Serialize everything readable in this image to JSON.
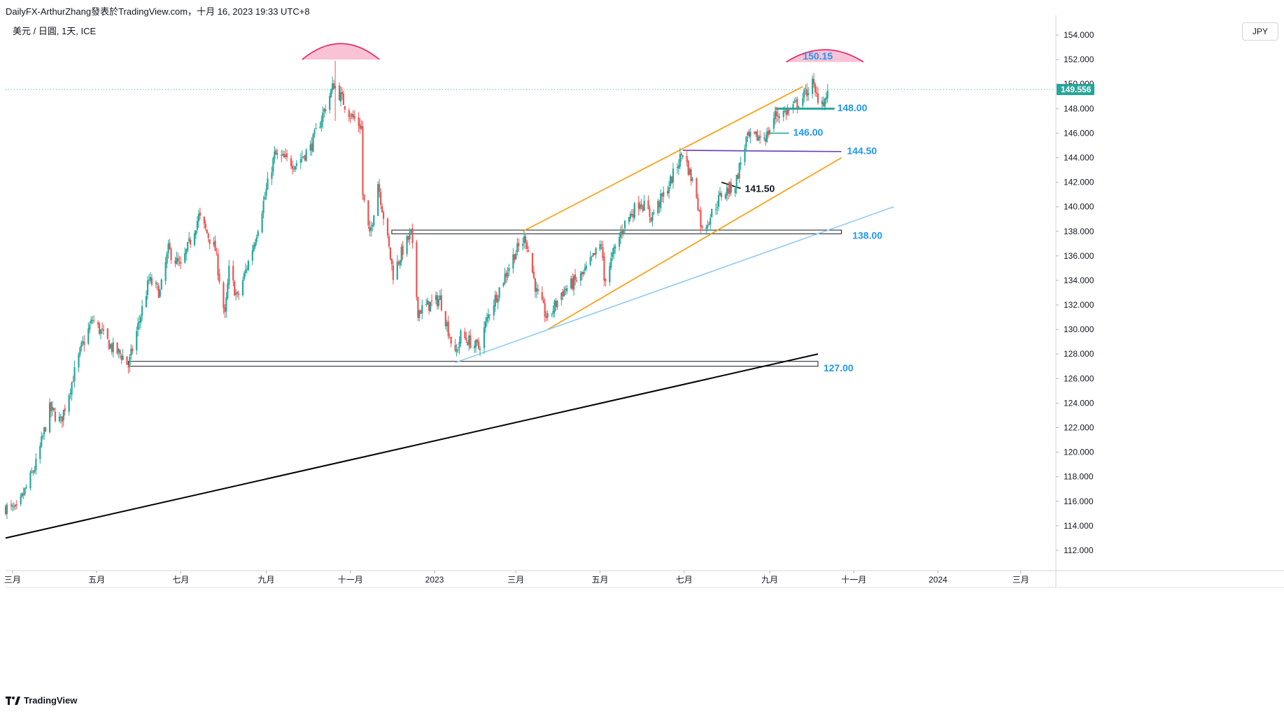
{
  "header": {
    "title": "DailyFX-ArthurZhang發表於TradingView.com，十月 16, 2023 19:33 UTC+8",
    "symbol": "美元 / 日圓, 1天, ICE"
  },
  "currency_button": "JPY",
  "footer_logo": "TradingView",
  "colors": {
    "up": "#26a69a",
    "down": "#ef5350",
    "orange": "#ff9800",
    "purple": "#673ab7",
    "lightblue": "#90caf9",
    "annotation_blue": "#2196f3",
    "arc": "#e91e63",
    "arc_fill": "#f8bbd0",
    "last_price_bg": "#26a69a"
  },
  "chart_data": {
    "type": "candlestick",
    "title": "美元 / 日圓, 1天, ICE",
    "xlabel": "",
    "ylabel": "",
    "ylim": [
      110.4,
      155.6
    ],
    "grid": false,
    "price_ticks": [
      "154.000",
      "152.000",
      "150.000",
      "148.000",
      "146.000",
      "144.000",
      "142.000",
      "140.000",
      "138.000",
      "136.000",
      "134.000",
      "132.000",
      "130.000",
      "128.000",
      "126.000",
      "124.000",
      "122.000",
      "120.000",
      "118.000",
      "116.000",
      "114.000",
      "112.000"
    ],
    "time_ticks": [
      {
        "label": "三月",
        "date": "2022-03-01"
      },
      {
        "label": "五月",
        "date": "2022-05-01"
      },
      {
        "label": "七月",
        "date": "2022-07-01"
      },
      {
        "label": "九月",
        "date": "2022-09-01"
      },
      {
        "label": "十一月",
        "date": "2022-11-01"
      },
      {
        "label": "2023",
        "date": "2023-01-01"
      },
      {
        "label": "三月",
        "date": "2023-03-01"
      },
      {
        "label": "五月",
        "date": "2023-05-01"
      },
      {
        "label": "七月",
        "date": "2023-07-01"
      },
      {
        "label": "九月",
        "date": "2023-09-01"
      },
      {
        "label": "十一月",
        "date": "2023-11-01"
      },
      {
        "label": "2024",
        "date": "2024-01-01"
      },
      {
        "label": "三月",
        "date": "2024-03-01"
      }
    ],
    "last_price": "149.556",
    "path_anchors": [
      [
        "2022-02-24",
        115.5
      ],
      [
        "2022-03-04",
        115.2
      ],
      [
        "2022-03-18",
        119.0
      ],
      [
        "2022-03-28",
        123.5
      ],
      [
        "2022-04-05",
        122.5
      ],
      [
        "2022-04-20",
        128.5
      ],
      [
        "2022-04-28",
        130.8
      ],
      [
        "2022-05-12",
        128.5
      ],
      [
        "2022-05-20",
        127.8
      ],
      [
        "2022-05-24",
        127.0
      ],
      [
        "2022-06-08",
        134.0
      ],
      [
        "2022-06-16",
        133.0
      ],
      [
        "2022-06-22",
        136.5
      ],
      [
        "2022-07-01",
        135.0
      ],
      [
        "2022-07-14",
        139.2
      ],
      [
        "2022-07-26",
        136.5
      ],
      [
        "2022-08-02",
        131.0
      ],
      [
        "2022-08-05",
        134.8
      ],
      [
        "2022-08-11",
        132.5
      ],
      [
        "2022-08-23",
        137.0
      ],
      [
        "2022-09-07",
        144.2
      ],
      [
        "2022-09-22",
        143.5
      ],
      [
        "2022-10-03",
        144.8
      ],
      [
        "2022-10-20",
        150.0
      ],
      [
        "2022-10-21",
        149.8
      ],
      [
        "2022-11-01",
        147.5
      ],
      [
        "2022-11-09",
        146.5
      ],
      [
        "2022-11-10",
        141.0
      ],
      [
        "2022-11-15",
        137.5
      ],
      [
        "2022-11-21",
        142.0
      ],
      [
        "2022-12-02",
        134.5
      ],
      [
        "2022-12-09",
        136.5
      ],
      [
        "2022-12-15",
        137.8
      ],
      [
        "2022-12-20",
        131.5
      ],
      [
        "2023-01-05",
        132.5
      ],
      [
        "2023-01-16",
        127.8
      ],
      [
        "2023-01-20",
        129.5
      ],
      [
        "2023-02-02",
        128.5
      ],
      [
        "2023-02-10",
        131.5
      ],
      [
        "2023-02-28",
        136.2
      ],
      [
        "2023-03-08",
        137.5
      ],
      [
        "2023-03-16",
        133.0
      ],
      [
        "2023-03-24",
        130.8
      ],
      [
        "2023-04-03",
        133.0
      ],
      [
        "2023-04-19",
        134.5
      ],
      [
        "2023-05-02",
        137.0
      ],
      [
        "2023-05-04",
        134.0
      ],
      [
        "2023-05-18",
        138.5
      ],
      [
        "2023-05-30",
        140.5
      ],
      [
        "2023-06-07",
        139.2
      ],
      [
        "2023-06-19",
        141.5
      ],
      [
        "2023-06-30",
        144.5
      ],
      [
        "2023-07-10",
        141.0
      ],
      [
        "2023-07-14",
        138.0
      ],
      [
        "2023-07-28",
        141.0
      ],
      [
        "2023-08-07",
        141.8
      ],
      [
        "2023-08-15",
        145.5
      ],
      [
        "2023-08-30",
        145.8
      ],
      [
        "2023-09-05",
        147.5
      ],
      [
        "2023-09-15",
        147.8
      ],
      [
        "2023-09-25",
        148.9
      ],
      [
        "2023-10-02",
        150.1
      ],
      [
        "2023-10-04",
        149.1
      ],
      [
        "2023-10-10",
        148.6
      ],
      [
        "2023-10-16",
        149.556
      ]
    ],
    "annotations": [
      {
        "label": "150.15",
        "value": 150.15
      },
      {
        "label": "148.00",
        "value": 148.0
      },
      {
        "label": "146.00",
        "value": 146.0
      },
      {
        "label": "144.50",
        "value": 144.5
      },
      {
        "label": "141.50",
        "value": 141.5
      },
      {
        "label": "138.00",
        "value": 138.0
      },
      {
        "label": "127.00",
        "value": 127.0
      }
    ],
    "trendlines": [
      {
        "name": "long-term-support",
        "from": [
          "2022-02-24",
          113.0
        ],
        "to": [
          "2023-10-06",
          128.0
        ],
        "color": "#000000"
      },
      {
        "name": "channel-upper",
        "from": [
          "2023-03-06",
          138.0
        ],
        "to": [
          "2023-09-25",
          149.8
        ],
        "color": "#ff9800"
      },
      {
        "name": "channel-lower",
        "from": [
          "2023-03-24",
          130.0
        ],
        "to": [
          "2023-10-23",
          144.0
        ],
        "color": "#ff9800"
      },
      {
        "name": "rising-support",
        "from": [
          "2023-01-16",
          127.3
        ],
        "to": [
          "2023-11-30",
          140.0
        ],
        "color": "#90caf9"
      },
      {
        "name": "resistance-144.5",
        "from": [
          "2023-06-30",
          144.6
        ],
        "to": [
          "2023-10-23",
          144.5
        ],
        "color": "#673ab7"
      },
      {
        "name": "short-line-141.5",
        "from": [
          "2023-07-28",
          142.0
        ],
        "to": [
          "2023-08-11",
          141.5
        ],
        "color": "#000000"
      },
      {
        "name": "line-146",
        "from": [
          "2023-08-30",
          146.0
        ],
        "to": [
          "2023-09-15",
          146.0
        ],
        "color": "#26a69a"
      },
      {
        "name": "line-148",
        "from": [
          "2023-09-05",
          148.0
        ],
        "to": [
          "2023-10-18",
          148.0
        ],
        "color": "#26a69a"
      }
    ],
    "zones": [
      {
        "name": "zone-138",
        "from": "2022-12-01",
        "to": "2023-10-23",
        "low": 137.8,
        "high": 138.1
      },
      {
        "name": "zone-127",
        "from": "2022-05-24",
        "to": "2023-10-06",
        "low": 127.0,
        "high": 127.4
      }
    ],
    "arcs": [
      {
        "name": "top-arc-2022",
        "from": "2022-09-27",
        "to": "2022-11-22",
        "base": 152.0,
        "peak": 153.3
      },
      {
        "name": "top-arc-2023",
        "from": "2023-09-13",
        "to": "2023-11-08",
        "base": 151.8,
        "peak": 152.8
      }
    ]
  }
}
